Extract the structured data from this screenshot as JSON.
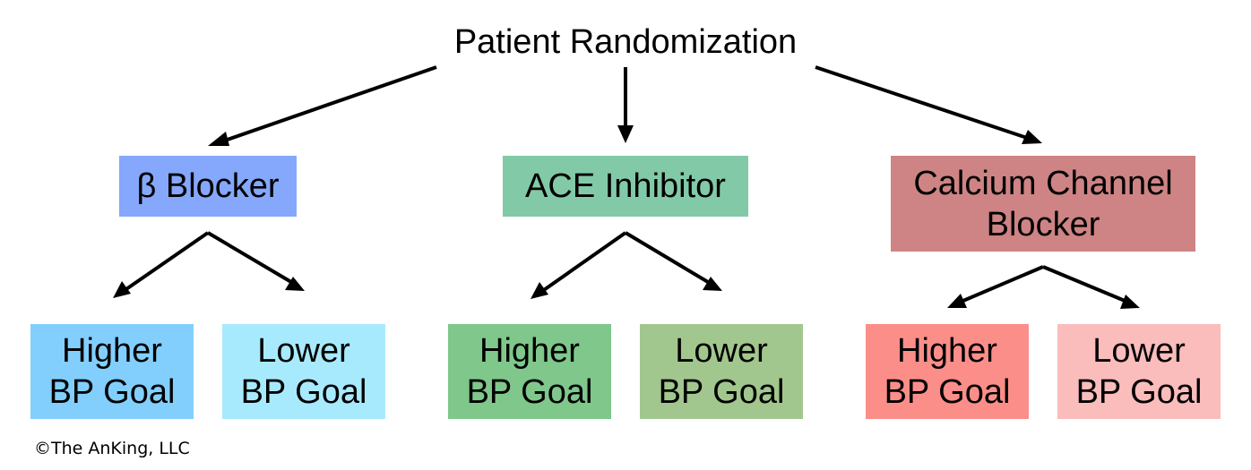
{
  "root": {
    "label": "Patient Randomization"
  },
  "drugs": [
    {
      "label": "β Blocker",
      "color": "#85A8FC",
      "goals": [
        {
          "label": "Higher\nBP Goal",
          "color": "#82CFFD"
        },
        {
          "label": "Lower\nBP Goal",
          "color": "#A8EAFD"
        }
      ]
    },
    {
      "label": "ACE Inhibitor",
      "color": "#82C9A8",
      "goals": [
        {
          "label": "Higher\nBP Goal",
          "color": "#7FC78B"
        },
        {
          "label": "Lower\nBP Goal",
          "color": "#A2C78E"
        }
      ]
    },
    {
      "label": "Calcium Channel\nBlocker",
      "color": "#CE8484",
      "goals": [
        {
          "label": "Higher\nBP Goal",
          "color": "#FC8E89"
        },
        {
          "label": "Lower\nBP Goal",
          "color": "#FBBCBC"
        }
      ]
    }
  ],
  "footer": {
    "copyright": "©The AnKing, LLC"
  }
}
